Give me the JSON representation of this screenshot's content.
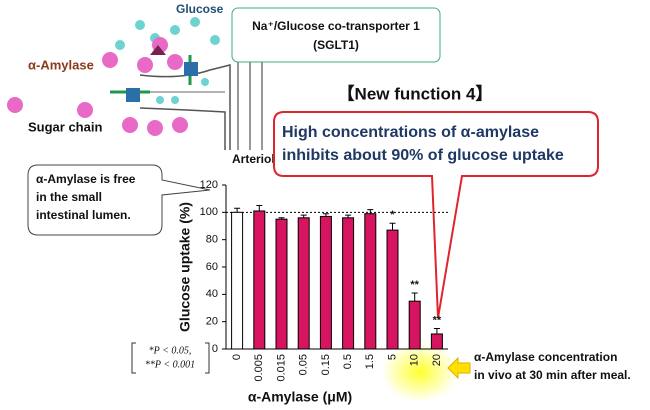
{
  "chart_data": {
    "type": "bar",
    "heading": "【New function 4】",
    "callout": [
      "High concentrations of α-amylase",
      "inhibits about 90% of glucose uptake"
    ],
    "note": [
      "α-Amylase is free",
      "in the small",
      "intestinal lumen."
    ],
    "p_values": [
      "*P < 0.05,",
      "**P < 0.001"
    ],
    "highlight": [
      "α-Amylase concentration",
      "in vivo at 30 min after meal."
    ],
    "xlabel": "α-Amylase (μM)",
    "ylabel": "Glucose uptake (%)",
    "categories": [
      "0",
      "0.005",
      "0.015",
      "0.05",
      "0.15",
      "0.5",
      "1.5",
      "5",
      "10",
      "20"
    ],
    "values": [
      100,
      101,
      95,
      96,
      97,
      96,
      99,
      87,
      35,
      11
    ],
    "errors": [
      3,
      4,
      1,
      2,
      2,
      2,
      3,
      5,
      6,
      4
    ],
    "significance": [
      null,
      null,
      null,
      null,
      null,
      null,
      null,
      "*",
      "**",
      "**"
    ],
    "bar_colors": [
      "#ffffff",
      "#d6145f",
      "#d6145f",
      "#d6145f",
      "#d6145f",
      "#d6145f",
      "#d6145f",
      "#d6145f",
      "#d6145f",
      "#d6145f"
    ],
    "reference_line": 100,
    "ylim": [
      0,
      120
    ],
    "yticks": [
      0,
      20,
      40,
      60,
      80,
      100,
      120
    ]
  },
  "diagram": {
    "glucose": "Glucose",
    "sglt1": [
      "Na⁺/Glucose co-transporter 1",
      "(SGLT1)"
    ],
    "amylase": "α-Amylase",
    "sugar_chain": "Sugar chain",
    "arteriole": "Arteriole"
  }
}
